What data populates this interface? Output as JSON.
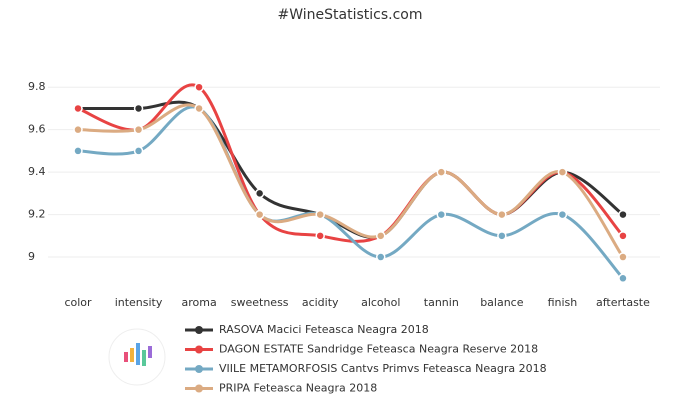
{
  "chart_data": {
    "type": "line",
    "title": "#WineStatistics.com",
    "categories": [
      "color",
      "intensity",
      "aroma",
      "sweetness",
      "acidity",
      "alcohol",
      "tannin",
      "balance",
      "finish",
      "aftertaste"
    ],
    "series": [
      {
        "name": "RASOVA Macici Feteasca Neagra 2018",
        "color": "#333333",
        "values": [
          9.7,
          9.7,
          9.7,
          9.3,
          9.2,
          9.1,
          9.4,
          9.2,
          9.4,
          9.2
        ]
      },
      {
        "name": "DAGON ESTATE Sandridge Feteasca Neagra Reserve 2018",
        "color": "#e84343",
        "values": [
          9.7,
          9.6,
          9.8,
          9.2,
          9.1,
          9.1,
          9.4,
          9.2,
          9.4,
          9.1
        ]
      },
      {
        "name": "VIILE METAMORFOSIS Cantvs Primvs Feteasca Neagra 2018",
        "color": "#74a9c3",
        "values": [
          9.5,
          9.5,
          9.7,
          9.2,
          9.2,
          9.0,
          9.2,
          9.1,
          9.2,
          8.9
        ]
      },
      {
        "name": "PRIPA Feteasca Neagra 2018",
        "color": "#dbab82",
        "values": [
          9.6,
          9.6,
          9.7,
          9.2,
          9.2,
          9.1,
          9.4,
          9.2,
          9.4,
          9.0
        ]
      }
    ],
    "ylim": [
      8.8,
      9.9
    ],
    "yticks": [
      9,
      9.2,
      9.4,
      9.6,
      9.8
    ],
    "grid": true
  }
}
